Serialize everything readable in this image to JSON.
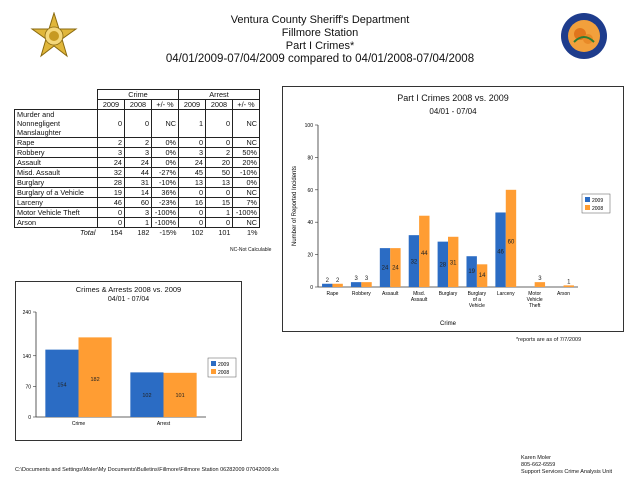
{
  "header": {
    "line1": "Ventura County Sheriff's Department",
    "line2": "Fillmore Station",
    "line3": "Part I Crimes*",
    "line4": "04/01/2009-07/04/2009 compared to 04/01/2008-07/04/2008"
  },
  "seals": {
    "right_text": "CITY OF FILLMORE CALIFORNIA"
  },
  "table": {
    "group_crime": "Crime",
    "group_arrest": "Arrest",
    "col_headers": [
      "2009",
      "2008",
      "+/- %",
      "2009",
      "2008",
      "+/- %"
    ],
    "rows": [
      {
        "label": "Murder and Nonnegligent Manslaughter",
        "c09": "0",
        "c08": "0",
        "cpct": "NC",
        "a09": "1",
        "a08": "0",
        "apct": "NC"
      },
      {
        "label": "Rape",
        "c09": "2",
        "c08": "2",
        "cpct": "0%",
        "a09": "0",
        "a08": "0",
        "apct": "NC"
      },
      {
        "label": "Robbery",
        "c09": "3",
        "c08": "3",
        "cpct": "0%",
        "a09": "3",
        "a08": "2",
        "apct": "50%"
      },
      {
        "label": "Assault",
        "c09": "24",
        "c08": "24",
        "cpct": "0%",
        "a09": "24",
        "a08": "20",
        "apct": "20%"
      },
      {
        "label": "Misd. Assault",
        "c09": "32",
        "c08": "44",
        "cpct": "-27%",
        "a09": "45",
        "a08": "50",
        "apct": "-10%"
      },
      {
        "label": "Burglary",
        "c09": "28",
        "c08": "31",
        "cpct": "-10%",
        "a09": "13",
        "a08": "13",
        "apct": "0%"
      },
      {
        "label": "Burglary of a Vehicle",
        "c09": "19",
        "c08": "14",
        "cpct": "36%",
        "a09": "0",
        "a08": "0",
        "apct": "NC"
      },
      {
        "label": "Larceny",
        "c09": "46",
        "c08": "60",
        "cpct": "-23%",
        "a09": "16",
        "a08": "15",
        "apct": "7%"
      },
      {
        "label": "Motor Vehicle Theft",
        "c09": "0",
        "c08": "3",
        "cpct": "-100%",
        "a09": "0",
        "a08": "1",
        "apct": "-100%"
      },
      {
        "label": "Arson",
        "c09": "0",
        "c08": "1",
        "cpct": "-100%",
        "a09": "0",
        "a08": "0",
        "apct": "NC"
      }
    ],
    "total": {
      "label": "Total",
      "c09": "154",
      "c08": "182",
      "cpct": "-15%",
      "a09": "102",
      "a08": "101",
      "apct": "1%"
    },
    "nc_note": "NC-Not Calculable"
  },
  "footer": {
    "note": "*reports are as of 7/7/2009",
    "path": "C:\\Documents and Settings\\Moler\\My Documents\\Bulletins\\Fillmore\\Fillmore Station 06282009 07042009.xls",
    "author_name": "Karen Moler",
    "author_phone": "805-662-6559",
    "author_unit": "Support Services Crime Analysis Unit"
  },
  "colors": {
    "c2009": "#2b6cc4",
    "c2008": "#ff9d33"
  },
  "chart_data": [
    {
      "type": "bar",
      "title": "Part I Crimes 2008 vs. 2009",
      "subtitle": "04/01 - 07/04",
      "xlabel": "Crime",
      "ylabel": "Number of Reported Incidents",
      "ylim": [
        0,
        100
      ],
      "yticks": [
        0,
        20,
        40,
        60,
        80,
        100
      ],
      "categories": [
        "Rape",
        "Robbery",
        "Assault",
        "Misd. Assault",
        "Burglary",
        "Burglary of a Vehicle",
        "Larceny",
        "Motor Vehicle Theft",
        "Arson"
      ],
      "series": [
        {
          "name": "2009",
          "values": [
            2,
            3,
            24,
            32,
            28,
            19,
            46,
            0,
            0
          ]
        },
        {
          "name": "2008",
          "values": [
            2,
            3,
            24,
            44,
            31,
            14,
            60,
            3,
            1
          ]
        }
      ],
      "legend": "right"
    },
    {
      "type": "bar",
      "title": "Crimes & Arrests 2008 vs. 2009",
      "subtitle": "04/01 - 07/04",
      "ylim": [
        0,
        240
      ],
      "yticks": [
        0,
        70,
        140,
        240
      ],
      "categories": [
        "Crime",
        "Arrest"
      ],
      "series": [
        {
          "name": "2009",
          "values": [
            154,
            102
          ]
        },
        {
          "name": "2008",
          "values": [
            182,
            101
          ]
        }
      ],
      "legend": "right"
    }
  ]
}
